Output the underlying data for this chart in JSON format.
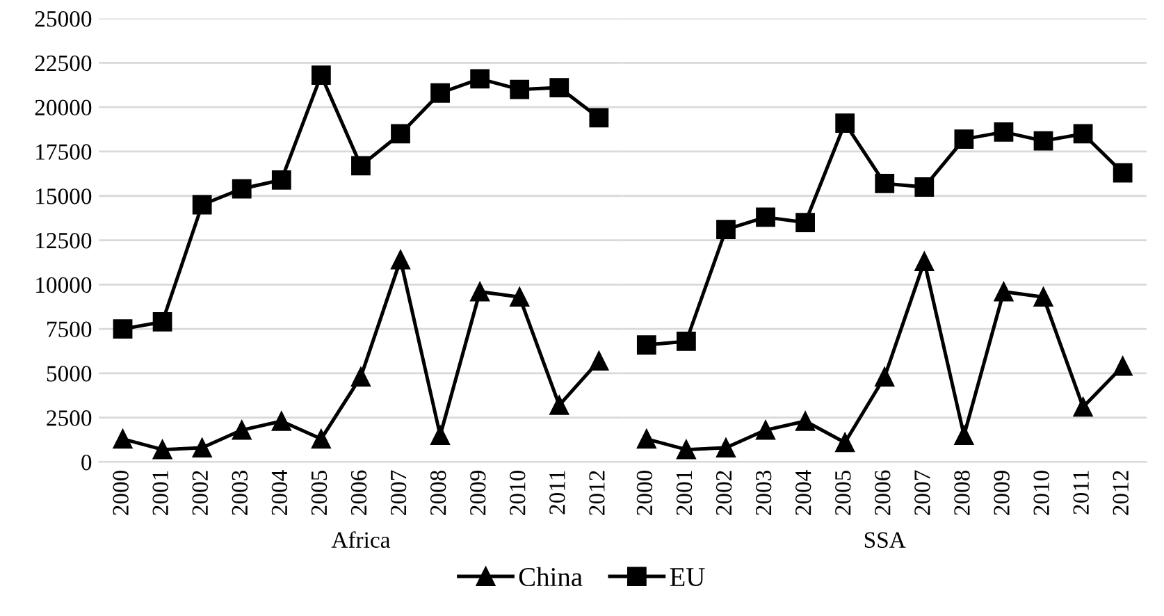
{
  "chart_data": [
    {
      "type": "line",
      "xlabel": "Africa",
      "categories": [
        "2000",
        "2001",
        "2002",
        "2003",
        "2004",
        "2005",
        "2006",
        "2007",
        "2008",
        "2009",
        "2010",
        "2011",
        "2012"
      ],
      "ylim": [
        0,
        25000
      ],
      "yticks": [
        0,
        2500,
        5000,
        7500,
        10000,
        12500,
        15000,
        17500,
        20000,
        22500,
        25000
      ],
      "grid": "y",
      "legend": "bottom",
      "series": [
        {
          "name": "China",
          "color": "#000000",
          "marker": "triangle",
          "values": [
            1300,
            700,
            800,
            1800,
            2300,
            1300,
            4800,
            11400,
            1500,
            9600,
            9300,
            3200,
            5700
          ]
        },
        {
          "name": "EU",
          "color": "#000000",
          "marker": "square",
          "values": [
            7500,
            7900,
            14500,
            15400,
            15900,
            21800,
            16700,
            18500,
            20800,
            21600,
            21000,
            21100,
            19400
          ]
        }
      ]
    },
    {
      "type": "line",
      "xlabel": "SSA",
      "categories": [
        "2000",
        "2001",
        "2002",
        "2003",
        "2004",
        "2005",
        "2006",
        "2007",
        "2008",
        "2009",
        "2010",
        "2011",
        "2012"
      ],
      "ylim": [
        0,
        25000
      ],
      "yticks": [
        0,
        2500,
        5000,
        7500,
        10000,
        12500,
        15000,
        17500,
        20000,
        22500,
        25000
      ],
      "grid": "y",
      "tick_labels": "x",
      "series": [
        {
          "color": "#000000",
          "marker": "triangle",
          "values": [
            1300,
            700,
            800,
            1800,
            2300,
            1100,
            4800,
            11300,
            1500,
            9600,
            9300,
            3100,
            5400
          ]
        },
        {
          "color": "#000000",
          "marker": "square",
          "values": [
            6600,
            6800,
            13100,
            13800,
            13500,
            19100,
            15700,
            15500,
            18200,
            18600,
            18100,
            18500,
            16300
          ]
        }
      ]
    }
  ]
}
